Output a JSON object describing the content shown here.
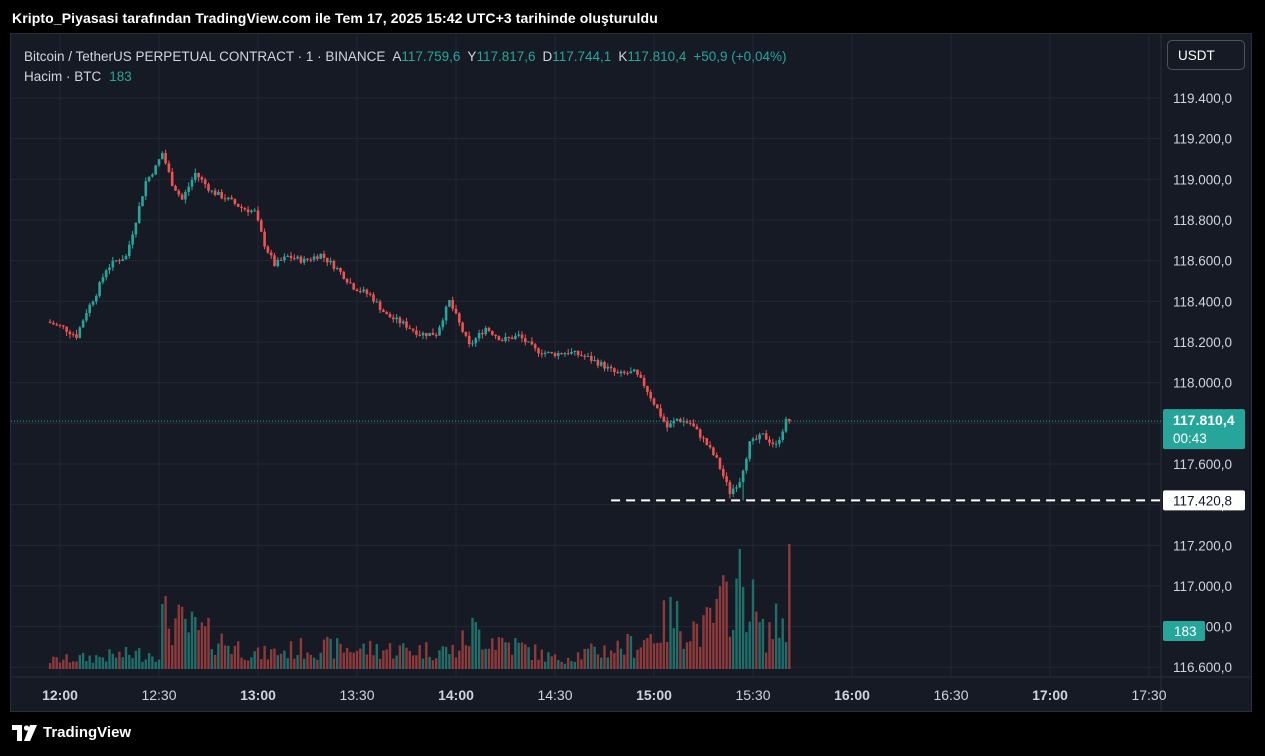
{
  "caption": "Kripto_Piyasasi tarafından TradingView.com ile Tem 17, 2025 15:42 UTC+3 tarihinde oluşturuldu",
  "legend": {
    "symbol": "Bitcoin / TetherUS PERPETUAL CONTRACT · 1 · BINANCE",
    "open_label": "A",
    "open": "117.759,6",
    "high_label": "Y",
    "high": "117.817,6",
    "low_label": "D",
    "low": "117.744,1",
    "close_label": "K",
    "close": "117.810,4",
    "change": "+50,9 (+0,04%)",
    "volume_label": "Hacim · BTC",
    "volume_value": "183"
  },
  "currency_button": "USDT",
  "price_badge": {
    "price": "117.810,4",
    "countdown": "00:43"
  },
  "low_line_label": "117.420,8",
  "volume_badge": "183",
  "brand": "TradingView",
  "colors": {
    "up": "#26a69a",
    "down": "#ef5350",
    "background": "#161a25",
    "grid": "#232734"
  },
  "chart_data": {
    "type": "candlestick",
    "interval_minutes": 1,
    "y_axis": {
      "ticks": [
        "119.400,0",
        "119.200,0",
        "119.000,0",
        "118.800,0",
        "118.600,0",
        "118.400,0",
        "118.200,0",
        "118.000,0",
        "117.800,0",
        "117.600,0",
        "117.400,0",
        "117.200,0",
        "117.000,0",
        "116.800,0",
        "116.600,0"
      ],
      "tick_values": [
        119400,
        119200,
        119000,
        118800,
        118600,
        118400,
        118200,
        118000,
        117800,
        117600,
        117400,
        117200,
        117000,
        116800,
        116600
      ]
    },
    "x_axis": {
      "ticks": [
        "12:00",
        "12:30",
        "13:00",
        "13:30",
        "14:00",
        "14:30",
        "15:00",
        "15:30",
        "16:00",
        "16:30",
        "17:00",
        "17:30"
      ],
      "bold": [
        true,
        false,
        true,
        false,
        true,
        false,
        true,
        false,
        true,
        false,
        true,
        false
      ]
    },
    "grid": true,
    "start_time": "12:00",
    "last_price": 117810.4,
    "low_line": 117420.8,
    "close_path": [
      [
        "11:57",
        118300
      ],
      [
        "12:02",
        118270
      ],
      [
        "12:06",
        118230
      ],
      [
        "12:09",
        118350
      ],
      [
        "12:12",
        118440
      ],
      [
        "12:15",
        118560
      ],
      [
        "12:18",
        118600
      ],
      [
        "12:21",
        118620
      ],
      [
        "12:24",
        118800
      ],
      [
        "12:27",
        118990
      ],
      [
        "12:30",
        119060
      ],
      [
        "12:32",
        119130
      ],
      [
        "12:35",
        118980
      ],
      [
        "12:38",
        118900
      ],
      [
        "12:42",
        119030
      ],
      [
        "12:47",
        118940
      ],
      [
        "12:52",
        118900
      ],
      [
        "12:56",
        118860
      ],
      [
        "13:00",
        118840
      ],
      [
        "13:03",
        118680
      ],
      [
        "13:06",
        118580
      ],
      [
        "13:10",
        118620
      ],
      [
        "13:15",
        118600
      ],
      [
        "13:20",
        118630
      ],
      [
        "13:25",
        118560
      ],
      [
        "13:30",
        118470
      ],
      [
        "13:35",
        118430
      ],
      [
        "13:40",
        118330
      ],
      [
        "13:45",
        118290
      ],
      [
        "13:50",
        118240
      ],
      [
        "13:55",
        118240
      ],
      [
        "13:59",
        118400
      ],
      [
        "14:02",
        118290
      ],
      [
        "14:05",
        118180
      ],
      [
        "14:10",
        118270
      ],
      [
        "14:15",
        118210
      ],
      [
        "14:20",
        118230
      ],
      [
        "14:25",
        118160
      ],
      [
        "14:30",
        118140
      ],
      [
        "14:35",
        118150
      ],
      [
        "14:40",
        118130
      ],
      [
        "14:45",
        118090
      ],
      [
        "14:50",
        118040
      ],
      [
        "14:55",
        118050
      ],
      [
        "14:58",
        117990
      ],
      [
        "15:02",
        117870
      ],
      [
        "15:05",
        117780
      ],
      [
        "15:08",
        117820
      ],
      [
        "15:12",
        117800
      ],
      [
        "15:16",
        117720
      ],
      [
        "15:20",
        117620
      ],
      [
        "15:24",
        117460
      ],
      [
        "15:27",
        117520
      ],
      [
        "15:30",
        117700
      ],
      [
        "15:34",
        117740
      ],
      [
        "15:38",
        117690
      ],
      [
        "15:41",
        117810
      ]
    ],
    "volume_profile": [
      [
        "11:57",
        10
      ],
      [
        "12:30",
        20
      ],
      [
        "12:31",
        60
      ],
      [
        "13:00",
        17
      ],
      [
        "13:15",
        25
      ],
      [
        "14:00",
        22
      ],
      [
        "14:05",
        45
      ],
      [
        "14:30",
        12
      ],
      [
        "14:55",
        30
      ],
      [
        "15:00",
        42
      ],
      [
        "15:05",
        60
      ],
      [
        "15:15",
        45
      ],
      [
        "15:22",
        80
      ],
      [
        "15:26",
        98
      ],
      [
        "15:28",
        95
      ],
      [
        "15:33",
        40
      ],
      [
        "15:40",
        60
      ],
      [
        "15:41",
        110
      ]
    ]
  }
}
